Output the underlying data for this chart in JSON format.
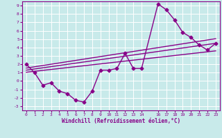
{
  "xlabel": "Windchill (Refroidissement éolien,°C)",
  "xlim": [
    -0.5,
    23.5
  ],
  "ylim": [
    -3.5,
    9.5
  ],
  "xticks": [
    0,
    1,
    2,
    3,
    4,
    5,
    6,
    7,
    8,
    9,
    10,
    11,
    12,
    13,
    14,
    16,
    17,
    18,
    19,
    20,
    21,
    22,
    23
  ],
  "yticks": [
    -3,
    -2,
    -1,
    0,
    1,
    2,
    3,
    4,
    5,
    6,
    7,
    8,
    9
  ],
  "bg_color": "#c8eaea",
  "grid_color": "#ffffff",
  "line_color": "#880088",
  "lines": [
    {
      "x": [
        0,
        1,
        2,
        3,
        4,
        5,
        6,
        7,
        8,
        9,
        10,
        11,
        12,
        13,
        14,
        16,
        17,
        18,
        19,
        20,
        21,
        22,
        23
      ],
      "y": [
        2,
        1,
        -0.5,
        -0.2,
        -1.2,
        -1.5,
        -2.3,
        -2.5,
        -1.2,
        1.3,
        1.3,
        1.5,
        3.3,
        1.5,
        1.5,
        9.2,
        8.5,
        7.3,
        5.8,
        5.2,
        4.3,
        3.7,
        4.5
      ],
      "marker": "D",
      "markersize": 2.5,
      "linewidth": 1.0
    },
    {
      "x": [
        0,
        23
      ],
      "y": [
        1.55,
        5.05
      ],
      "marker": null,
      "linewidth": 1.0
    },
    {
      "x": [
        0,
        23
      ],
      "y": [
        1.3,
        4.5
      ],
      "marker": null,
      "linewidth": 1.0
    },
    {
      "x": [
        0,
        23
      ],
      "y": [
        1.05,
        3.6
      ],
      "marker": null,
      "linewidth": 1.0
    }
  ]
}
